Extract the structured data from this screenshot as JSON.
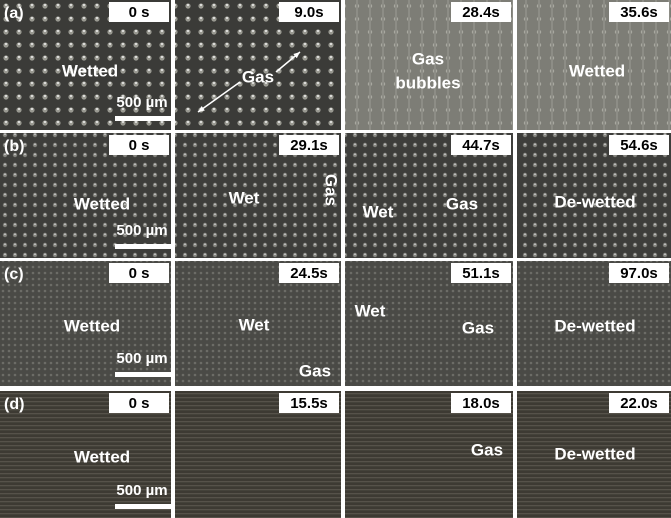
{
  "rows": [
    {
      "label": "(a)",
      "panels": [
        {
          "time": "0 s",
          "annotations": [
            "Wetted"
          ],
          "scale_bar": "500 µm"
        },
        {
          "time": "9.0s",
          "annotations": [
            "Gas"
          ]
        },
        {
          "time": "28.4s",
          "annotations": [
            "Gas",
            "bubbles"
          ]
        },
        {
          "time": "35.6s",
          "annotations": [
            "Wetted"
          ]
        }
      ]
    },
    {
      "label": "(b)",
      "panels": [
        {
          "time": "0 s",
          "annotations": [
            "Wetted"
          ],
          "scale_bar": "500 µm"
        },
        {
          "time": "29.1s",
          "annotations": [
            "Wet",
            "Gas"
          ]
        },
        {
          "time": "44.7s",
          "annotations": [
            "Wet",
            "Gas"
          ]
        },
        {
          "time": "54.6s",
          "annotations": [
            "De-wetted"
          ]
        }
      ]
    },
    {
      "label": "(c)",
      "panels": [
        {
          "time": "0 s",
          "annotations": [
            "Wetted"
          ],
          "scale_bar": "500 µm"
        },
        {
          "time": "24.5s",
          "annotations": [
            "Wet",
            "Gas"
          ]
        },
        {
          "time": "51.1s",
          "annotations": [
            "Wet",
            "Gas"
          ]
        },
        {
          "time": "97.0s",
          "annotations": [
            "De-wetted"
          ]
        }
      ]
    },
    {
      "label": "(d)",
      "panels": [
        {
          "time": "0 s",
          "annotations": [
            "Wetted"
          ],
          "scale_bar": "500 µm"
        },
        {
          "time": "15.5s",
          "annotations": []
        },
        {
          "time": "18.0s",
          "annotations": [
            "Gas"
          ]
        },
        {
          "time": "22.0s",
          "annotations": [
            "De-wetted"
          ]
        }
      ]
    }
  ]
}
